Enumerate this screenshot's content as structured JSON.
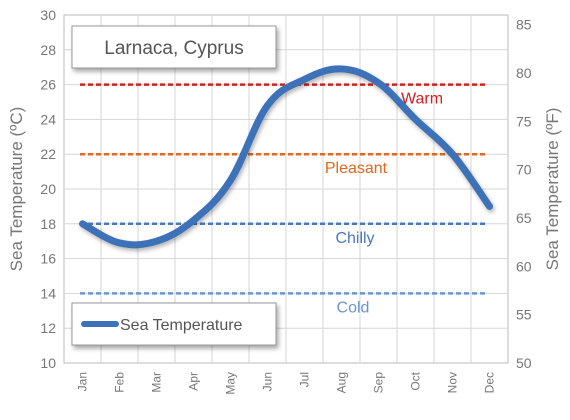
{
  "chart_data": {
    "type": "line",
    "title": "Larnaca, Cyprus",
    "ylabel_left": "Sea Temperature (ºC)",
    "ylabel_right": "Sea Temperature (ºF)",
    "categories": [
      "Jan",
      "Feb",
      "Mar",
      "Apr",
      "May",
      "Jun",
      "Jul",
      "Aug",
      "Sep",
      "Oct",
      "Nov",
      "Dec"
    ],
    "series": [
      {
        "name": "Sea Temperature",
        "color": "#3d72b8",
        "values": [
          18.0,
          16.9,
          17.0,
          18.2,
          20.5,
          24.8,
          26.3,
          26.9,
          26.1,
          24.0,
          22.0,
          19.0
        ]
      }
    ],
    "ylim_left": [
      10,
      30
    ],
    "yticks_left": [
      10,
      12,
      14,
      16,
      18,
      20,
      22,
      24,
      26,
      28,
      30
    ],
    "ylim_right": [
      50,
      86
    ],
    "yticks_right": [
      50,
      55,
      60,
      65,
      70,
      75,
      80,
      85
    ],
    "grid": true,
    "legend_position": "bottom-left",
    "title_position": "top-left",
    "reference_lines": [
      {
        "label": "Warm",
        "value": 26,
        "color": "#d42020"
      },
      {
        "label": "Pleasant",
        "value": 22,
        "color": "#e0671c"
      },
      {
        "label": "Chilly",
        "value": 18,
        "color": "#4a78c0"
      },
      {
        "label": "Cold",
        "value": 14,
        "color": "#6a96d0"
      }
    ]
  }
}
